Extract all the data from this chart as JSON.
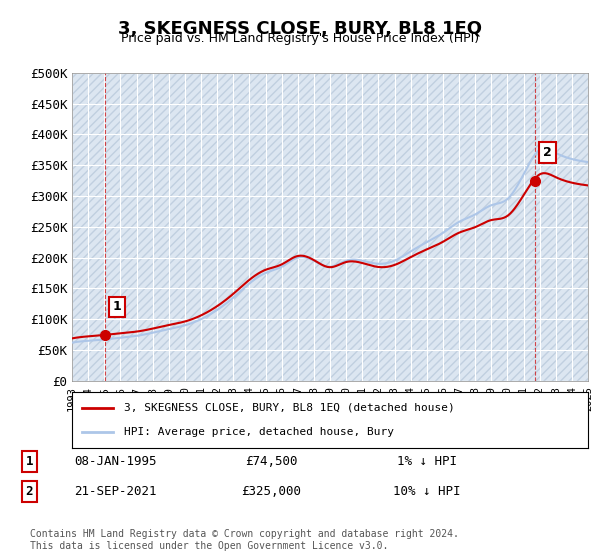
{
  "title": "3, SKEGNESS CLOSE, BURY, BL8 1EQ",
  "subtitle": "Price paid vs. HM Land Registry's House Price Index (HPI)",
  "ylabel_ticks": [
    "£0",
    "£50K",
    "£100K",
    "£150K",
    "£200K",
    "£250K",
    "£300K",
    "£350K",
    "£400K",
    "£450K",
    "£500K"
  ],
  "ylim": [
    0,
    500000
  ],
  "xlim_years": [
    1993,
    2025
  ],
  "background_color": "#ffffff",
  "plot_bg_color": "#dce6f1",
  "grid_color": "#ffffff",
  "hatch_color": "#c0cfe0",
  "line_color_hpi": "#adc6e8",
  "line_color_property": "#cc0000",
  "point1_x": 1995.03,
  "point1_y": 74500,
  "point2_x": 2021.72,
  "point2_y": 325000,
  "annotation1_label": "1",
  "annotation2_label": "2",
  "legend_line1": "3, SKEGNESS CLOSE, BURY, BL8 1EQ (detached house)",
  "legend_line2": "HPI: Average price, detached house, Bury",
  "table_row1": [
    "1",
    "08-JAN-1995",
    "£74,500",
    "1% ↓ HPI"
  ],
  "table_row2": [
    "2",
    "21-SEP-2021",
    "£325,000",
    "10% ↓ HPI"
  ],
  "footer": "Contains HM Land Registry data © Crown copyright and database right 2024.\nThis data is licensed under the Open Government Licence v3.0.",
  "hpi_years": [
    1993,
    1994,
    1995,
    1996,
    1997,
    1998,
    1999,
    2000,
    2001,
    2002,
    2003,
    2004,
    2005,
    2006,
    2007,
    2008,
    2009,
    2010,
    2011,
    2012,
    2013,
    2014,
    2015,
    2016,
    2017,
    2018,
    2019,
    2020,
    2021,
    2022,
    2023,
    2024,
    2025
  ],
  "hpi_values": [
    62000,
    65000,
    67000,
    70000,
    73000,
    78000,
    84000,
    90000,
    100000,
    115000,
    135000,
    158000,
    175000,
    185000,
    200000,
    195000,
    185000,
    195000,
    195000,
    190000,
    195000,
    210000,
    225000,
    240000,
    258000,
    270000,
    285000,
    295000,
    335000,
    375000,
    370000,
    360000,
    355000
  ]
}
